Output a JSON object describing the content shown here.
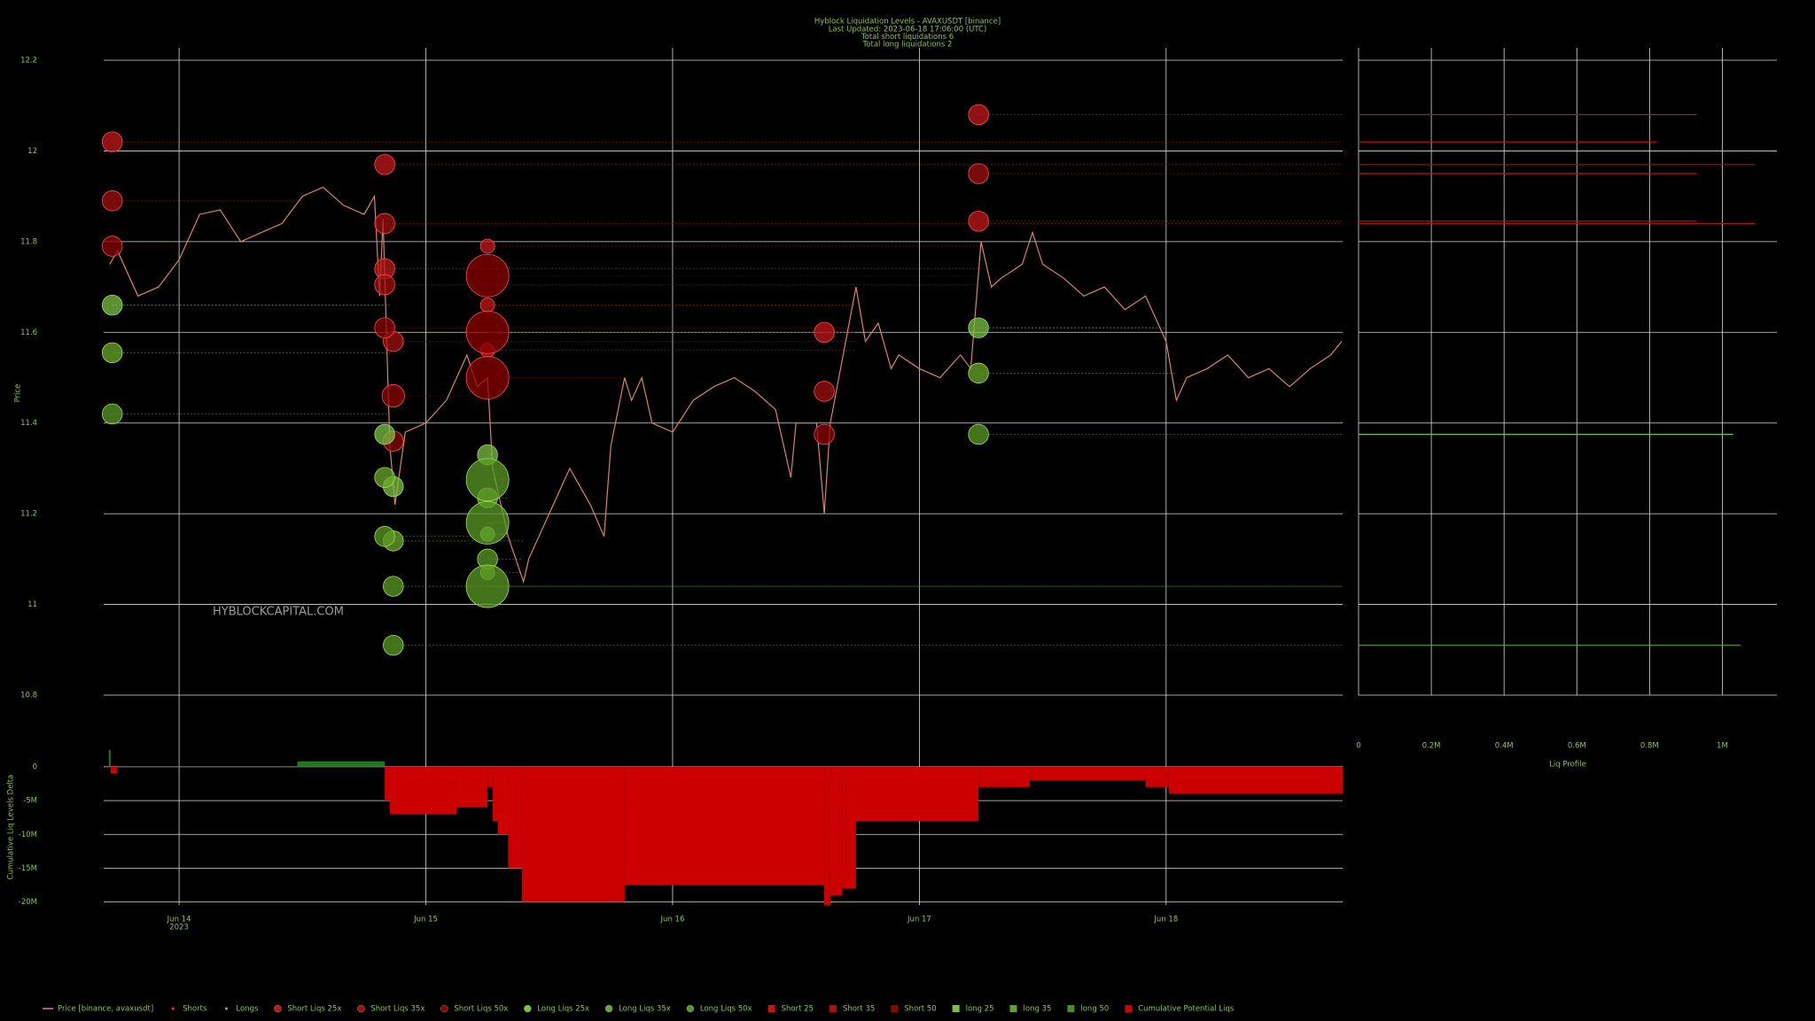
{
  "title": "Hyblock Liquidation Levels - AVAXUSDT [binance]",
  "subtitles": [
    "Last Updated: 2023-06-18 17:06:00 (UTC)",
    "Total short liquidations 6",
    "Total long liquidations 2"
  ],
  "watermark": "HYBLOCKCAPITAL.COM",
  "chart_data": [
    {
      "type": "scatter",
      "ylabel": "Price",
      "xlim": [
        "2023-06-13T16:40",
        "2023-06-18T17:10"
      ],
      "xticks": [
        {
          "value": "2023-06-14",
          "label": "Jun 14"
        },
        {
          "value": "2023-06-15",
          "label": "Jun 15"
        },
        {
          "value": "2023-06-16",
          "label": "Jun 16"
        },
        {
          "value": "2023-06-17",
          "label": "Jun 17"
        },
        {
          "value": "2023-06-18",
          "label": "Jun 18"
        }
      ],
      "xtick_year": "2023",
      "ylim": [
        10.8,
        12.2
      ],
      "yticks": [
        10.8,
        11,
        11.2,
        11.4,
        11.6,
        11.8,
        12,
        12.2
      ],
      "grid": true,
      "line": {
        "name": "Price [binance, avaxusdt]",
        "color": "#d9826b",
        "x": [
          "2023-06-13T17:15",
          "2023-06-13T18:00",
          "2023-06-13T20:00",
          "2023-06-13T22:00",
          "2023-06-14T00:00",
          "2023-06-14T02:00",
          "2023-06-14T04:00",
          "2023-06-14T06:00",
          "2023-06-14T08:00",
          "2023-06-14T10:00",
          "2023-06-14T12:00",
          "2023-06-14T14:00",
          "2023-06-14T16:00",
          "2023-06-14T18:00",
          "2023-06-14T19:00",
          "2023-06-14T19:30",
          "2023-06-14T19:50",
          "2023-06-14T20:30",
          "2023-06-14T21:00",
          "2023-06-14T22:00",
          "2023-06-15T00:00",
          "2023-06-15T02:00",
          "2023-06-15T04:00",
          "2023-06-15T05:00",
          "2023-06-15T06:00",
          "2023-06-15T06:30",
          "2023-06-15T08:00",
          "2023-06-15T09:30",
          "2023-06-15T10:00",
          "2023-06-15T12:00",
          "2023-06-15T14:00",
          "2023-06-15T16:00",
          "2023-06-15T17:20",
          "2023-06-15T18:00",
          "2023-06-15T19:20",
          "2023-06-15T20:00",
          "2023-06-15T21:00",
          "2023-06-15T22:00",
          "2023-06-16T00:00",
          "2023-06-16T02:00",
          "2023-06-16T04:00",
          "2023-06-16T06:00",
          "2023-06-16T08:00",
          "2023-06-16T10:00",
          "2023-06-16T11:30",
          "2023-06-16T12:00",
          "2023-06-16T14:00",
          "2023-06-16T14:45",
          "2023-06-16T15:20",
          "2023-06-16T16:00",
          "2023-06-16T17:50",
          "2023-06-16T18:45",
          "2023-06-16T20:00",
          "2023-06-16T21:15",
          "2023-06-16T22:00",
          "2023-06-17T00:00",
          "2023-06-17T02:00",
          "2023-06-17T04:00",
          "2023-06-17T05:00",
          "2023-06-17T06:00",
          "2023-06-17T07:00",
          "2023-06-17T08:00",
          "2023-06-17T10:00",
          "2023-06-17T11:00",
          "2023-06-17T12:00",
          "2023-06-17T14:00",
          "2023-06-17T16:00",
          "2023-06-17T18:00",
          "2023-06-17T20:00",
          "2023-06-17T22:00",
          "2023-06-18T00:00",
          "2023-06-18T01:00",
          "2023-06-18T02:00",
          "2023-06-18T04:00",
          "2023-06-18T06:00",
          "2023-06-18T08:00",
          "2023-06-18T10:00",
          "2023-06-18T12:00",
          "2023-06-18T14:00",
          "2023-06-18T16:00",
          "2023-06-18T17:05"
        ],
        "values": [
          11.75,
          11.78,
          11.68,
          11.7,
          11.76,
          11.86,
          11.87,
          11.8,
          11.82,
          11.84,
          11.9,
          11.92,
          11.88,
          11.86,
          11.9,
          11.68,
          11.85,
          11.35,
          11.22,
          11.38,
          11.4,
          11.45,
          11.55,
          11.48,
          11.5,
          11.3,
          11.15,
          11.05,
          11.1,
          11.2,
          11.3,
          11.22,
          11.15,
          11.35,
          11.5,
          11.45,
          11.5,
          11.4,
          11.38,
          11.45,
          11.48,
          11.5,
          11.47,
          11.43,
          11.28,
          11.4,
          11.4,
          11.2,
          11.4,
          11.48,
          11.7,
          11.58,
          11.62,
          11.52,
          11.55,
          11.52,
          11.5,
          11.55,
          11.52,
          11.8,
          11.7,
          11.72,
          11.75,
          11.82,
          11.75,
          11.72,
          11.68,
          11.7,
          11.65,
          11.68,
          11.58,
          11.45,
          11.5,
          11.52,
          11.55,
          11.5,
          11.52,
          11.48,
          11.52,
          11.55,
          11.58
        ]
      },
      "markers": [
        {
          "name": "Shorts",
          "color": "#ff3030"
        },
        {
          "name": "Longs",
          "color": "#7ac143"
        }
      ],
      "series": [
        {
          "name": "Short Liqs 25x",
          "side": "short",
          "color": "#c01818",
          "x": [
            "2023-06-13T17:30",
            "2023-06-14T20:00",
            "2023-06-14T20:00",
            "2023-06-15T06:00",
            "2023-06-15T06:00",
            "2023-06-15T06:00",
            "2023-06-16T14:45",
            "2023-06-17T05:45",
            "2023-06-17T05:45"
          ],
          "y": [
            12.02,
            11.97,
            11.74,
            11.79,
            11.66,
            11.56,
            11.6,
            12.08,
            11.845
          ],
          "sizes": [
            2,
            2,
            2,
            1,
            1,
            1,
            2,
            2,
            2
          ]
        },
        {
          "name": "Short Liqs 35x",
          "side": "short",
          "color": "#a01010",
          "x": [
            "2023-06-13T17:30",
            "2023-06-14T20:00",
            "2023-06-14T20:00",
            "2023-06-14T20:50",
            "2023-06-16T14:45",
            "2023-06-17T05:45"
          ],
          "y": [
            11.89,
            11.84,
            11.705,
            11.58,
            11.47,
            11.95
          ],
          "sizes": [
            2,
            2,
            2,
            2,
            2,
            2
          ]
        },
        {
          "name": "Short Liqs 50x",
          "side": "short",
          "color": "#8b0000",
          "x": [
            "2023-06-13T17:30",
            "2023-06-14T20:00",
            "2023-06-14T20:50",
            "2023-06-14T20:50",
            "2023-06-15T06:00",
            "2023-06-15T06:00",
            "2023-06-15T06:00",
            "2023-06-16T14:45"
          ],
          "y": [
            11.79,
            11.61,
            11.46,
            11.36,
            11.725,
            11.6,
            11.5,
            11.375
          ],
          "sizes": [
            2,
            2,
            2.5,
            2,
            9,
            9,
            9,
            2
          ]
        },
        {
          "name": "Long Liqs 25x",
          "side": "long",
          "color": "#7ac143",
          "x": [
            "2023-06-13T17:30",
            "2023-06-14T20:00",
            "2023-06-14T20:50",
            "2023-06-15T06:00",
            "2023-06-15T06:00",
            "2023-06-17T05:45"
          ],
          "y": [
            11.66,
            11.375,
            11.26,
            11.33,
            11.155,
            11.61
          ],
          "sizes": [
            2,
            2,
            2,
            2,
            1,
            2
          ]
        },
        {
          "name": "Long Liqs 35x",
          "side": "long",
          "color": "#6aa82a",
          "x": [
            "2023-06-13T17:30",
            "2023-06-14T20:00",
            "2023-06-14T20:50",
            "2023-06-15T06:00",
            "2023-06-15T06:00",
            "2023-06-17T05:45"
          ],
          "y": [
            11.555,
            11.28,
            11.14,
            11.235,
            11.07,
            11.51
          ],
          "sizes": [
            2,
            2,
            2,
            2,
            1,
            2
          ]
        },
        {
          "name": "Long Liqs 50x",
          "side": "long",
          "color": "#5a9a24",
          "x": [
            "2023-06-13T17:30",
            "2023-06-14T20:00",
            "2023-06-14T20:50",
            "2023-06-14T20:50",
            "2023-06-15T06:00",
            "2023-06-15T06:00",
            "2023-06-15T06:00",
            "2023-06-15T06:00",
            "2023-06-17T05:45"
          ],
          "y": [
            11.42,
            11.15,
            11.04,
            10.91,
            11.275,
            11.18,
            11.1,
            11.04,
            11.375
          ],
          "sizes": [
            2,
            2,
            2,
            2,
            9,
            9,
            2,
            9,
            2
          ]
        }
      ]
    },
    {
      "type": "barh",
      "xlabel": "Liq Profile",
      "xlim": [
        0,
        1150000
      ],
      "xticks": [
        0,
        {
          "value": 200000,
          "label": "0.2M"
        },
        {
          "value": 400000,
          "label": "0.4M"
        },
        {
          "value": 600000,
          "label": "0.6M"
        },
        {
          "value": 800000,
          "label": "0.8M"
        },
        {
          "value": 1000000,
          "label": "1M"
        }
      ],
      "series": [
        {
          "name": "Short 25",
          "color": "#cc1111",
          "levels": [
            12.08,
            12.02,
            11.95,
            11.845
          ],
          "values": [
            930000,
            820000,
            930000,
            930000
          ]
        },
        {
          "name": "Short 35",
          "color": "#aa1010",
          "levels": [
            11.97,
            11.84
          ],
          "values": [
            1090000,
            1090000
          ]
        },
        {
          "name": "Short 50",
          "color": "#880808",
          "levels": [],
          "values": []
        },
        {
          "name": "long 25",
          "color": "#7ac143",
          "levels": [
            11.375
          ],
          "values": [
            1030000
          ]
        },
        {
          "name": "long 35",
          "color": "#5fa030",
          "levels": [
            10.91
          ],
          "values": [
            1050000
          ]
        },
        {
          "name": "long 50",
          "color": "#4a8a2a",
          "levels": [],
          "values": []
        }
      ]
    },
    {
      "type": "step",
      "ylabel": "Cumulative Liq Levels Delta",
      "name": "Cumulative Potential Liqs",
      "color": "#cc0000",
      "color_positive": "#1f7a1f",
      "ylim": [
        -20700000,
        3000000
      ],
      "yticks": [
        0,
        {
          "value": -5000000,
          "label": "-5M"
        },
        {
          "value": -10000000,
          "label": "-10M"
        },
        {
          "value": -15000000,
          "label": "-15M"
        },
        {
          "value": -20000000,
          "label": "-20M"
        }
      ],
      "x": [
        "2023-06-13T17:10",
        "2023-06-13T17:20",
        "2023-06-13T18:00",
        "2023-06-14T11:30",
        "2023-06-14T20:00",
        "2023-06-14T20:30",
        "2023-06-15T03:00",
        "2023-06-15T06:00",
        "2023-06-15T06:30",
        "2023-06-15T07:00",
        "2023-06-15T08:00",
        "2023-06-15T09:20",
        "2023-06-15T19:20",
        "2023-06-16T14:45",
        "2023-06-16T15:20",
        "2023-06-16T16:30",
        "2023-06-16T17:50",
        "2023-06-17T05:45",
        "2023-06-17T10:45",
        "2023-06-17T22:00",
        "2023-06-18T00:15"
      ],
      "values": [
        2500000,
        -1000000,
        100000,
        800000,
        -5000000,
        -7000000,
        -6000000,
        -3000000,
        -8000000,
        -10000000,
        -15000000,
        -20000000,
        -17500000,
        -20500000,
        -19000000,
        -18000000,
        -8000000,
        -3000000,
        -2000000,
        -3000000,
        -4000000
      ]
    }
  ]
}
